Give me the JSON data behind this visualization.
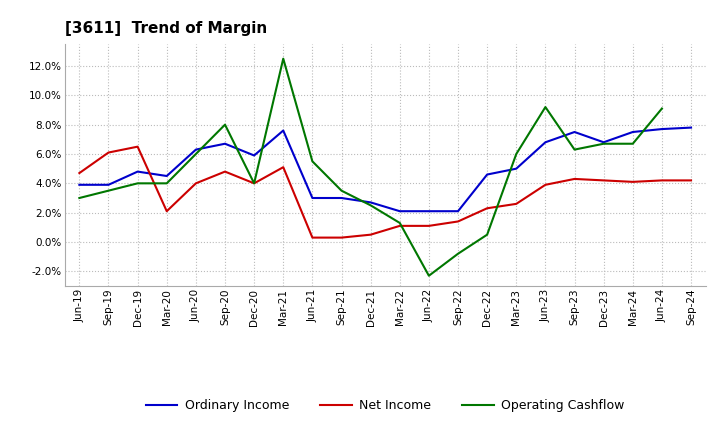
{
  "title": "[3611]  Trend of Margin",
  "x_labels": [
    "Jun-19",
    "Sep-19",
    "Dec-19",
    "Mar-20",
    "Jun-20",
    "Sep-20",
    "Dec-20",
    "Mar-21",
    "Jun-21",
    "Sep-21",
    "Dec-21",
    "Mar-22",
    "Jun-22",
    "Sep-22",
    "Dec-22",
    "Mar-23",
    "Jun-23",
    "Sep-23",
    "Dec-23",
    "Mar-24",
    "Jun-24",
    "Sep-24"
  ],
  "ordinary_income": [
    3.9,
    3.9,
    4.8,
    4.5,
    6.3,
    6.7,
    5.9,
    7.6,
    3.0,
    3.0,
    2.7,
    2.1,
    2.1,
    2.1,
    4.6,
    5.0,
    6.8,
    7.5,
    6.8,
    7.5,
    7.7,
    7.8
  ],
  "net_income": [
    4.7,
    6.1,
    6.5,
    2.1,
    4.0,
    4.8,
    4.0,
    5.1,
    0.3,
    0.3,
    0.5,
    1.1,
    1.1,
    1.4,
    2.3,
    2.6,
    3.9,
    4.3,
    4.2,
    4.1,
    4.2,
    4.2
  ],
  "operating_cashflow": [
    3.0,
    3.5,
    4.0,
    4.0,
    6.0,
    8.0,
    4.0,
    12.5,
    5.5,
    3.5,
    2.5,
    1.3,
    -2.3,
    -0.8,
    0.5,
    6.0,
    9.2,
    6.3,
    6.7,
    6.7,
    9.1,
    null
  ],
  "ylim": [
    -3.0,
    13.5
  ],
  "yticks": [
    -2.0,
    0.0,
    2.0,
    4.0,
    6.0,
    8.0,
    10.0,
    12.0
  ],
  "color_blue": "#0000CC",
  "color_red": "#CC0000",
  "color_green": "#007700",
  "background_color": "#FFFFFF",
  "grid_color": "#BBBBBB",
  "title_fontsize": 11,
  "tick_fontsize": 7.5,
  "legend_fontsize": 9
}
